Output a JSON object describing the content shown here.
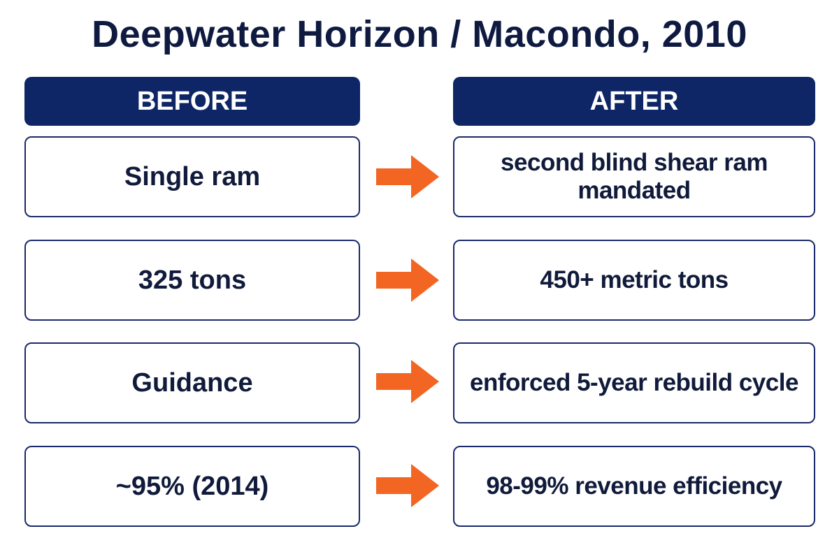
{
  "title": "Deepwater Horizon / Macondo, 2010",
  "headers": {
    "before": "BEFORE",
    "after": "AFTER"
  },
  "colors": {
    "header_bg": "#0e2566",
    "box_border": "#1b2a6b",
    "arrow": "#f26522",
    "text": "#101a3a"
  },
  "rows": [
    {
      "before": "Single ram",
      "after": "second blind shear ram mandated",
      "arrow_icon": "right-arrow-icon"
    },
    {
      "before": "325 tons",
      "after": "450+ metric tons",
      "arrow_icon": "right-arrow-icon"
    },
    {
      "before": "Guidance",
      "after": "enforced 5-year rebuild cycle",
      "arrow_icon": "right-arrow-icon"
    },
    {
      "before": "~95% (2014)",
      "after": "98-99% revenue efficiency",
      "arrow_icon": "right-arrow-icon"
    }
  ]
}
